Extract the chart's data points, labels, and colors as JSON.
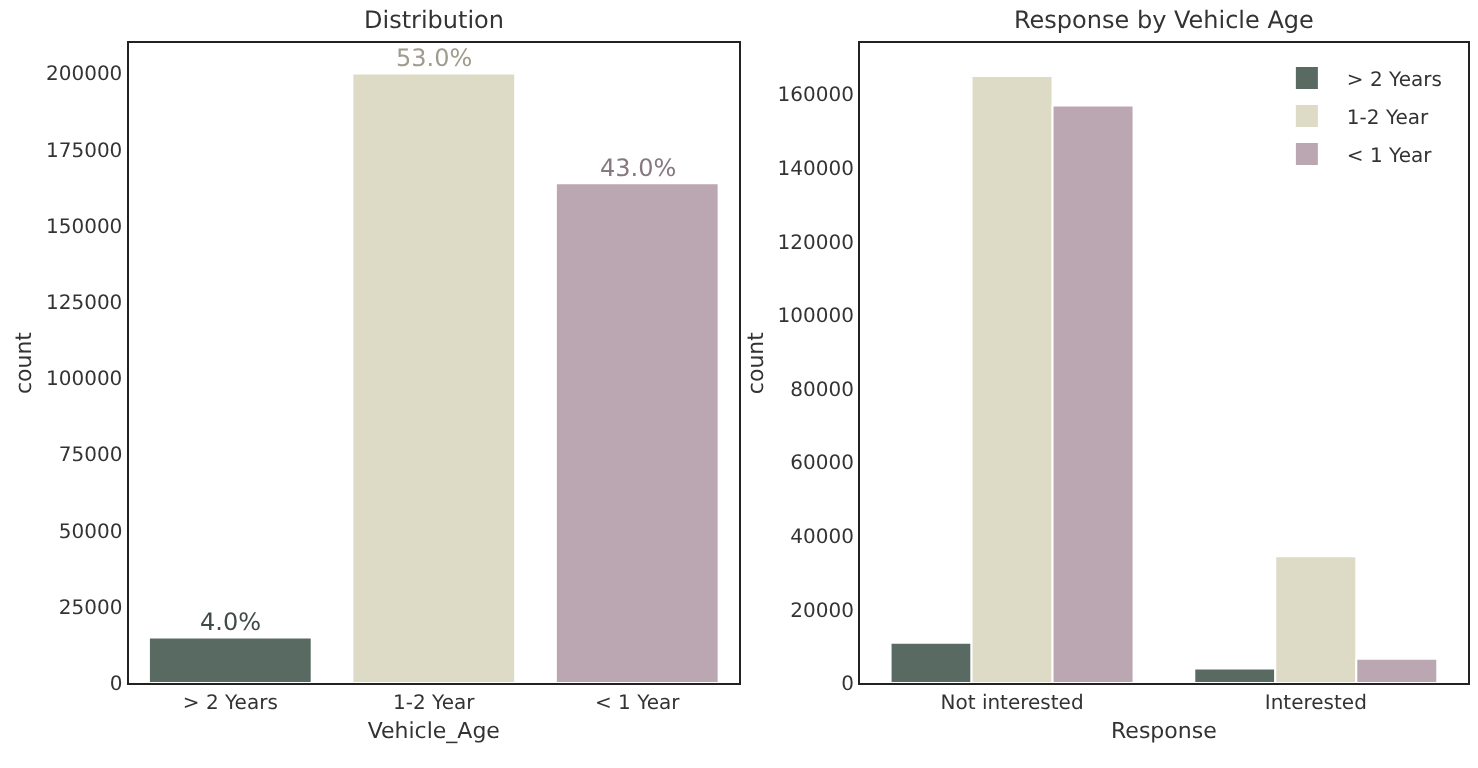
{
  "chart_data": [
    {
      "type": "bar",
      "title": "Distribution",
      "xlabel": "Vehicle_Age",
      "ylabel": "count",
      "categories": [
        "> 2 Years",
        "1-2 Year",
        "< 1 Year"
      ],
      "values": [
        15000,
        200000,
        164000
      ],
      "colors": [
        "#586a62",
        "#dddac5",
        "#bba7b2"
      ],
      "annotations": [
        {
          "text": "4.0%",
          "x": "> 2 Years",
          "y": 15000
        },
        {
          "text": "53.0%",
          "x": "1-2 Year",
          "y": 200000
        },
        {
          "text": "43.0%",
          "x": "< 1 Year",
          "y": 164000
        }
      ],
      "ylim": [
        0,
        210000
      ],
      "yticks": [
        0,
        25000,
        50000,
        75000,
        100000,
        125000,
        150000,
        175000,
        200000
      ],
      "legend": false
    },
    {
      "type": "bar",
      "title": "Response by Vehicle Age",
      "xlabel": "Response",
      "ylabel": "count",
      "categories": [
        "Not interested",
        "Interested"
      ],
      "series": [
        {
          "name": "> 2 Years",
          "color": "#586a62",
          "values": [
            11000,
            4000
          ]
        },
        {
          "name": "1-2 Year",
          "color": "#dddac5",
          "values": [
            165000,
            34500
          ]
        },
        {
          "name": "< 1 Year",
          "color": "#bba7b2",
          "values": [
            157000,
            6600
          ]
        }
      ],
      "ylim": [
        0,
        174000
      ],
      "yticks": [
        0,
        20000,
        40000,
        60000,
        80000,
        100000,
        120000,
        140000,
        160000
      ],
      "legend": "top right"
    }
  ]
}
